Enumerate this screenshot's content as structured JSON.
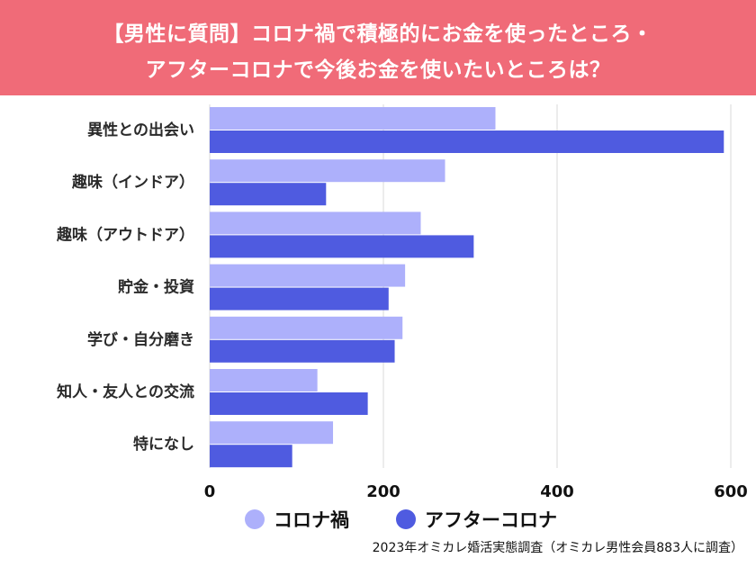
{
  "title": {
    "line1": "【男性に質問】コロナ禍で積極的にお金を使ったところ・",
    "line2": "アフターコロナで今後お金を使いたいところは？"
  },
  "colors": {
    "banner": "#f06b78",
    "series_during": "#adb0fb",
    "series_after": "#4f5be0",
    "grid": "#d8d8d8"
  },
  "chart_data": {
    "type": "bar",
    "orientation": "horizontal",
    "title": "【男性に質問】コロナ禍で積極的にお金を使ったところ・アフターコロナで今後お金を使いたいところは？",
    "categories": [
      "異性との出会い",
      "趣味（インドア）",
      "趣味（アウトドア）",
      "貯金・投資",
      "学び・自分磨き",
      "知人・友人との交流",
      "特になし"
    ],
    "series": [
      {
        "name": "コロナ禍",
        "values": [
          329,
          271,
          243,
          225,
          222,
          124,
          142
        ]
      },
      {
        "name": "アフターコロナ",
        "values": [
          592,
          134,
          304,
          206,
          213,
          182,
          95
        ]
      }
    ],
    "xlim": [
      0,
      600
    ],
    "x_ticks": [
      0,
      200,
      400,
      600
    ],
    "grid": true,
    "legend_position": "bottom"
  },
  "legend": {
    "items": [
      {
        "label": "コロナ禍",
        "color": "#adb0fb"
      },
      {
        "label": "アフターコロナ",
        "color": "#4f5be0"
      }
    ]
  },
  "source": "2023年オミカレ婚活実態調査（オミカレ男性会員883人に調査）"
}
